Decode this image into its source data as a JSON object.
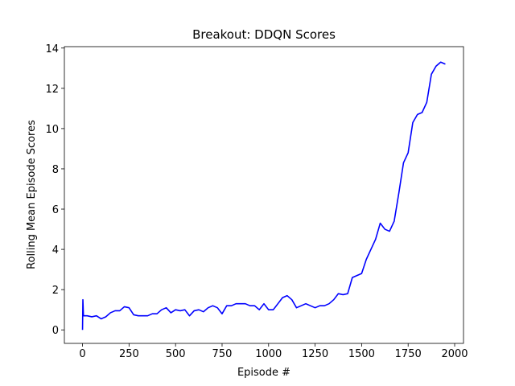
{
  "chart_data": {
    "type": "line",
    "title": "Breakout: DDQN Scores",
    "xlabel": "Episode #",
    "ylabel": "Rolling Mean Episode Scores",
    "x": [
      0,
      2,
      5,
      25,
      50,
      75,
      100,
      125,
      150,
      175,
      200,
      225,
      250,
      275,
      300,
      325,
      350,
      375,
      400,
      425,
      450,
      475,
      500,
      525,
      550,
      575,
      600,
      625,
      650,
      675,
      700,
      725,
      750,
      775,
      800,
      825,
      850,
      875,
      900,
      925,
      950,
      975,
      1000,
      1025,
      1050,
      1075,
      1100,
      1125,
      1150,
      1175,
      1200,
      1225,
      1250,
      1275,
      1300,
      1325,
      1350,
      1375,
      1400,
      1425,
      1450,
      1475,
      1500,
      1525,
      1550,
      1575,
      1600,
      1625,
      1650,
      1675,
      1700,
      1725,
      1750,
      1775,
      1800,
      1825,
      1850,
      1875,
      1900,
      1925,
      1950
    ],
    "values": [
      0,
      1.5,
      0.7,
      0.7,
      0.65,
      0.7,
      0.55,
      0.65,
      0.85,
      0.95,
      0.95,
      1.15,
      1.1,
      0.75,
      0.7,
      0.7,
      0.7,
      0.8,
      0.8,
      1.0,
      1.1,
      0.85,
      1.0,
      0.95,
      1.0,
      0.7,
      0.95,
      1.0,
      0.9,
      1.1,
      1.2,
      1.1,
      0.8,
      1.2,
      1.2,
      1.3,
      1.3,
      1.3,
      1.2,
      1.2,
      1.0,
      1.3,
      1.0,
      1.0,
      1.3,
      1.6,
      1.7,
      1.5,
      1.1,
      1.2,
      1.3,
      1.2,
      1.1,
      1.2,
      1.2,
      1.3,
      1.5,
      1.8,
      1.75,
      1.8,
      2.6,
      2.7,
      2.8,
      3.5,
      4.0,
      4.5,
      5.3,
      5.0,
      4.9,
      5.4,
      6.8,
      8.3,
      8.8,
      10.3,
      10.7,
      10.8,
      11.3,
      12.7,
      13.1,
      13.3,
      13.2
    ],
    "color": "#0000ff",
    "xlim": [
      -97.5,
      2047.5
    ],
    "xticks": [
      0,
      250,
      500,
      750,
      1000,
      1250,
      1500,
      1750,
      2000
    ],
    "ylim": [
      -0.67,
      14.07
    ],
    "yticks": [
      0,
      2,
      4,
      6,
      8,
      10,
      12,
      14
    ]
  }
}
